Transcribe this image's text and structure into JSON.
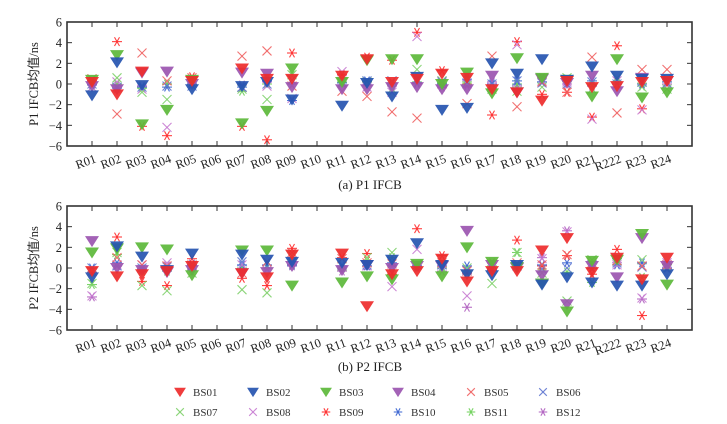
{
  "chart_data": [
    {
      "type": "scatter",
      "caption": "(a) P1 IFCB",
      "ylabel": "P1 IFCB均值/ns",
      "ylim": [
        -6,
        6
      ],
      "yticks": [
        "6",
        "4",
        "2",
        "0",
        "−2",
        "−4",
        "−6"
      ],
      "ytick_values": [
        6,
        4,
        2,
        0,
        -2,
        -4,
        -6
      ],
      "categories": [
        "R01",
        "R02",
        "R03",
        "R04",
        "R05",
        "R06",
        "R07",
        "R08",
        "R09",
        "R10",
        "R11",
        "R12",
        "R13",
        "R14",
        "R15",
        "R16",
        "R17",
        "R18",
        "R19",
        "R20",
        "R21",
        "R222",
        "R23",
        "R24"
      ],
      "series": [
        {
          "name": "BS01",
          "values": [
            0.2,
            -1.0,
            1.2,
            null,
            0.3,
            null,
            1.5,
            0.5,
            0.5,
            null,
            0.8,
            2.4,
            0.2,
            0.5,
            1.0,
            0.6,
            -0.5,
            -0.8,
            -1.6,
            0.3,
            -0.3,
            -0.2,
            0.2,
            0.3
          ]
        },
        {
          "name": "BS02",
          "values": [
            -1.1,
            2.1,
            -0.1,
            null,
            -0.5,
            null,
            -0.2,
            0.2,
            -1.5,
            null,
            -2.1,
            0.1,
            -1.2,
            0.7,
            -2.5,
            -2.3,
            2.0,
            1.0,
            2.4,
            0.4,
            1.7,
            0.8,
            0.5,
            0.5
          ]
        },
        {
          "name": "BS03",
          "values": [
            0.4,
            2.8,
            -3.9,
            -2.5,
            0.4,
            null,
            -3.8,
            -2.6,
            1.5,
            null,
            0.2,
            2.3,
            2.4,
            2.4,
            0.0,
            1.1,
            -0.9,
            2.5,
            0.6,
            0.4,
            -1.2,
            2.4,
            -1.3,
            -0.8
          ]
        },
        {
          "name": "BS04",
          "values": [
            -0.2,
            -0.5,
            1.1,
            1.2,
            0.0,
            null,
            1.1,
            1.0,
            -0.3,
            null,
            -0.5,
            -0.5,
            -0.3,
            -0.3,
            -0.5,
            -0.5,
            0.8,
            -0.8,
            0.5,
            0.1,
            0.8,
            -0.7,
            0.6,
            0.3
          ]
        },
        {
          "name": "BS05",
          "values": [
            0.5,
            -2.9,
            3.0,
            0.3,
            0.6,
            null,
            2.7,
            3.2,
            -0.2,
            null,
            -0.7,
            -1.2,
            -2.7,
            -3.3,
            0.0,
            -1.9,
            2.7,
            -2.2,
            0.2,
            -0.8,
            2.6,
            -2.8,
            1.4,
            1.4
          ]
        },
        {
          "name": "BS06",
          "values": [
            0.0,
            -0.3,
            -0.3,
            -0.2,
            -0.2,
            null,
            -0.3,
            0.0,
            0.4,
            null,
            0.2,
            0.3,
            0.3,
            0.5,
            0.2,
            0.1,
            0.0,
            0.3,
            0.1,
            0.0,
            0.2,
            0.0,
            0.2,
            0.1
          ]
        },
        {
          "name": "BS07",
          "values": [
            0.5,
            0.6,
            -0.8,
            -1.5,
            0.3,
            null,
            -0.5,
            -1.5,
            0.9,
            null,
            0.1,
            0.2,
            -0.5,
            1.4,
            0.3,
            0.4,
            -0.5,
            -0.7,
            -0.3,
            0.6,
            -0.5,
            0.6,
            -0.3,
            -0.5
          ]
        },
        {
          "name": "BS08",
          "values": [
            -0.3,
            0.2,
            -0.5,
            -4.2,
            0.1,
            null,
            -0.3,
            -0.2,
            -1.4,
            null,
            1.2,
            -0.3,
            -0.8,
            4.6,
            0.3,
            0.0,
            -0.3,
            3.8,
            0.3,
            0.2,
            -3.4,
            0.3,
            -2.5,
            0.0
          ]
        },
        {
          "name": "BS09",
          "values": [
            0.3,
            4.1,
            -4.1,
            -5.0,
            0.7,
            null,
            -4.1,
            -5.4,
            3.0,
            null,
            0.9,
            2.6,
            2.3,
            5.0,
            1.3,
            0.0,
            -3.0,
            4.1,
            -1.0,
            -0.8,
            -3.2,
            3.7,
            -2.4,
            0.4
          ]
        },
        {
          "name": "BS10",
          "values": [
            -0.1,
            -0.4,
            -0.3,
            -0.3,
            0.0,
            null,
            -0.3,
            0.3,
            -1.6,
            null,
            0.1,
            0.3,
            0.0,
            0.1,
            0.0,
            0.4,
            0.0,
            0.3,
            0.2,
            0.3,
            0.3,
            0.0,
            0.0,
            0.2
          ]
        },
        {
          "name": "BS11",
          "values": [
            0.2,
            0.0,
            -0.4,
            0.0,
            0.4,
            null,
            -0.7,
            0.0,
            0.8,
            null,
            0.2,
            0.2,
            0.1,
            0.2,
            0.1,
            0.2,
            -0.5,
            0.0,
            0.6,
            0.5,
            0.0,
            0.2,
            -0.2,
            0.2
          ]
        },
        {
          "name": "BS12",
          "values": [
            0.0,
            -0.2,
            -0.2,
            0.0,
            0.0,
            null,
            -0.1,
            0.2,
            0.0,
            null,
            0.5,
            0.2,
            -0.2,
            0.0,
            -0.3,
            -0.2,
            0.2,
            -0.2,
            0.2,
            0.0,
            -0.2,
            0.0,
            0.0,
            0.0
          ]
        }
      ]
    },
    {
      "type": "scatter",
      "caption": "(b) P2 IFCB",
      "ylabel": "P2 IFCB均值/ns",
      "ylim": [
        -6,
        6
      ],
      "yticks": [
        "6",
        "4",
        "2",
        "0",
        "−2",
        "−4",
        "−6"
      ],
      "ytick_values": [
        6,
        4,
        2,
        0,
        -2,
        -4,
        -6
      ],
      "categories": [
        "R01",
        "R02",
        "R03",
        "R04",
        "R05",
        "R06",
        "R07",
        "R08",
        "R09",
        "R10",
        "R11",
        "R12",
        "R13",
        "R14",
        "R15",
        "R16",
        "R17",
        "R18",
        "R19",
        "R20",
        "R21",
        "R222",
        "R23",
        "R24"
      ],
      "series": [
        {
          "name": "BS01",
          "values": [
            -0.3,
            -0.8,
            -0.6,
            -0.3,
            0.2,
            null,
            -0.5,
            -0.9,
            1.3,
            null,
            1.4,
            -3.7,
            -0.6,
            -0.3,
            0.9,
            -1.3,
            -0.3,
            -0.3,
            1.7,
            2.9,
            -0.4,
            1.0,
            -1.1,
            1.0
          ]
        },
        {
          "name": "BS02",
          "values": [
            -0.9,
            2.1,
            1.1,
            -0.2,
            1.4,
            null,
            1.3,
            0.8,
            0.6,
            null,
            0.5,
            0.3,
            0.8,
            2.4,
            0.3,
            -0.6,
            -0.7,
            0.3,
            -1.6,
            -0.9,
            -1.4,
            -1.7,
            -1.7,
            -0.6
          ]
        },
        {
          "name": "BS03",
          "values": [
            1.5,
            1.9,
            2.0,
            1.8,
            -0.7,
            null,
            1.7,
            1.7,
            -1.7,
            null,
            -1.4,
            -0.8,
            -1.1,
            0.4,
            -0.8,
            2.0,
            0.6,
            0.1,
            -1.5,
            -4.2,
            0.7,
            0.8,
            3.3,
            -1.6
          ]
        },
        {
          "name": "BS04",
          "values": [
            2.6,
            0.0,
            -0.2,
            -0.4,
            -0.2,
            null,
            -0.5,
            -0.4,
            0.2,
            null,
            -0.2,
            0.3,
            0.0,
            0.2,
            0.2,
            3.6,
            0.3,
            0.0,
            -0.7,
            -3.5,
            0.2,
            -0.9,
            2.9,
            0.2
          ]
        },
        {
          "name": "BS05",
          "values": [
            -0.3,
            1.0,
            0.3,
            0.2,
            0.3,
            null,
            -0.5,
            0.6,
            1.5,
            null,
            0.9,
            0.5,
            0.4,
            0.3,
            0.5,
            -0.3,
            0.4,
            0.5,
            0.3,
            1.3,
            0.5,
            0.7,
            0.2,
            0.3
          ]
        },
        {
          "name": "BS06",
          "values": [
            0.0,
            0.2,
            0.0,
            0.1,
            0.2,
            null,
            0.6,
            0.6,
            0.6,
            null,
            0.3,
            0.3,
            0.6,
            0.3,
            0.3,
            -0.2,
            0.3,
            0.2,
            -0.1,
            0.0,
            0.3,
            0.5,
            0.1,
            0.3
          ]
        },
        {
          "name": "BS07",
          "values": [
            -1.5,
            1.5,
            -1.7,
            -2.2,
            -0.5,
            null,
            -2.1,
            -2.4,
            1.2,
            null,
            0.2,
            1.0,
            1.5,
            0.3,
            0.0,
            0.0,
            -1.5,
            1.5,
            -0.5,
            -3.2,
            0.8,
            0.7,
            0.8,
            0.0
          ]
        },
        {
          "name": "BS08",
          "values": [
            -2.7,
            0.3,
            0.3,
            0.5,
            0.2,
            null,
            0.3,
            -0.2,
            0.6,
            null,
            0.2,
            0.2,
            -1.8,
            1.8,
            0.3,
            -2.7,
            0.3,
            0.3,
            0.9,
            3.5,
            0.3,
            0.3,
            -2.9,
            0.5
          ]
        },
        {
          "name": "BS09",
          "values": [
            -0.4,
            3.0,
            -1.3,
            -1.7,
            0.9,
            null,
            -1.0,
            -1.7,
            1.9,
            null,
            1.0,
            1.4,
            -0.6,
            3.8,
            1.2,
            -0.5,
            0.5,
            2.7,
            0.2,
            1.2,
            -0.6,
            1.8,
            -4.6,
            0.4
          ]
        },
        {
          "name": "BS10",
          "values": [
            0.0,
            0.5,
            -0.1,
            0.0,
            0.3,
            null,
            0.3,
            0.3,
            0.3,
            null,
            0.2,
            0.2,
            0.5,
            0.2,
            0.2,
            0.2,
            -0.2,
            0.3,
            0.3,
            0.5,
            0.0,
            0.3,
            0.5,
            0.0
          ]
        },
        {
          "name": "BS11",
          "values": [
            -1.6,
            1.3,
            -0.3,
            -0.3,
            0.2,
            null,
            0.0,
            0.0,
            0.3,
            null,
            0.0,
            0.7,
            1.0,
            0.2,
            0.0,
            -0.3,
            0.2,
            1.5,
            -0.4,
            -0.4,
            -1.4,
            0.9,
            -0.9,
            0.3
          ]
        },
        {
          "name": "BS12",
          "values": [
            -2.8,
            0.2,
            0.2,
            0.2,
            0.4,
            null,
            -0.2,
            0.0,
            0.2,
            null,
            -0.3,
            0.2,
            0.2,
            0.0,
            -0.3,
            -3.8,
            0.0,
            0.0,
            1.0,
            3.6,
            0.0,
            0.5,
            -3.0,
            0.0
          ]
        }
      ]
    }
  ],
  "legend": {
    "items": [
      {
        "name": "BS01",
        "marker": "triangle-down",
        "color": "#ee2b2b"
      },
      {
        "name": "BS02",
        "marker": "triangle-down",
        "color": "#2554b0"
      },
      {
        "name": "BS03",
        "marker": "triangle-down",
        "color": "#5cb83a"
      },
      {
        "name": "BS04",
        "marker": "triangle-down",
        "color": "#9b55b0"
      },
      {
        "name": "BS05",
        "marker": "x",
        "color": "#f06060"
      },
      {
        "name": "BS06",
        "marker": "x",
        "color": "#6078d0"
      },
      {
        "name": "BS07",
        "marker": "x",
        "color": "#7fd06a"
      },
      {
        "name": "BS08",
        "marker": "x",
        "color": "#c77ad0"
      },
      {
        "name": "BS09",
        "marker": "asterisk",
        "color": "#ff2a2a"
      },
      {
        "name": "BS10",
        "marker": "asterisk",
        "color": "#3a64d0"
      },
      {
        "name": "BS11",
        "marker": "asterisk",
        "color": "#6fd05a"
      },
      {
        "name": "BS12",
        "marker": "asterisk",
        "color": "#b060c0"
      }
    ],
    "placement": "bottom-center"
  }
}
